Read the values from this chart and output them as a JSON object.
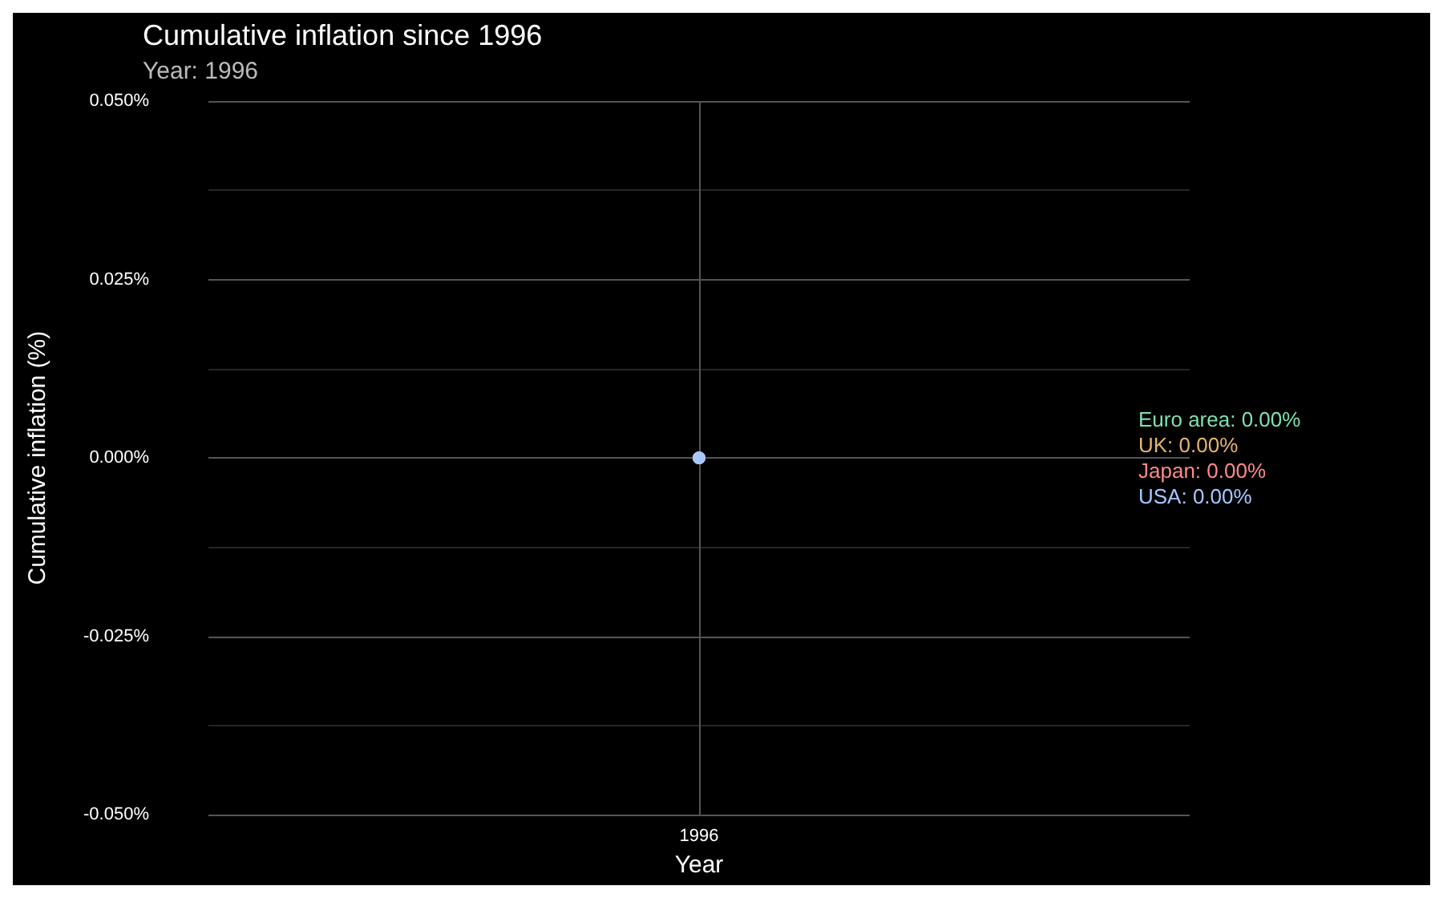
{
  "chart_data": {
    "type": "line",
    "title": "Cumulative inflation since 1996",
    "subtitle": "Year: 1996",
    "xlabel": "Year",
    "ylabel": "Cumulative inflation (%)",
    "categories": [
      "1996"
    ],
    "ylim": [
      -0.05,
      0.05
    ],
    "yticks": [
      {
        "value": -0.05,
        "label": "-0.050%"
      },
      {
        "value": -0.025,
        "label": "-0.025%"
      },
      {
        "value": 0,
        "label": "0.000%"
      },
      {
        "value": 0.025,
        "label": "0.025%"
      },
      {
        "value": 0.05,
        "label": "0.050%"
      }
    ],
    "grid": true,
    "marker": "circle",
    "legend": false,
    "series": [
      {
        "name": "Euro area:",
        "color": "#7fe0b0",
        "values": [
          0
        ],
        "value_labels": [
          "0.00%"
        ]
      },
      {
        "name": "UK:",
        "color": "#e6b36b",
        "values": [
          0
        ],
        "value_labels": [
          "0.00%"
        ]
      },
      {
        "name": "Japan:",
        "color": "#ff8a8a",
        "values": [
          0
        ],
        "value_labels": [
          "0.00%"
        ]
      },
      {
        "name": "USA:",
        "color": "#a6c8ff",
        "values": [
          0
        ],
        "value_labels": [
          "0.00%"
        ]
      }
    ]
  }
}
